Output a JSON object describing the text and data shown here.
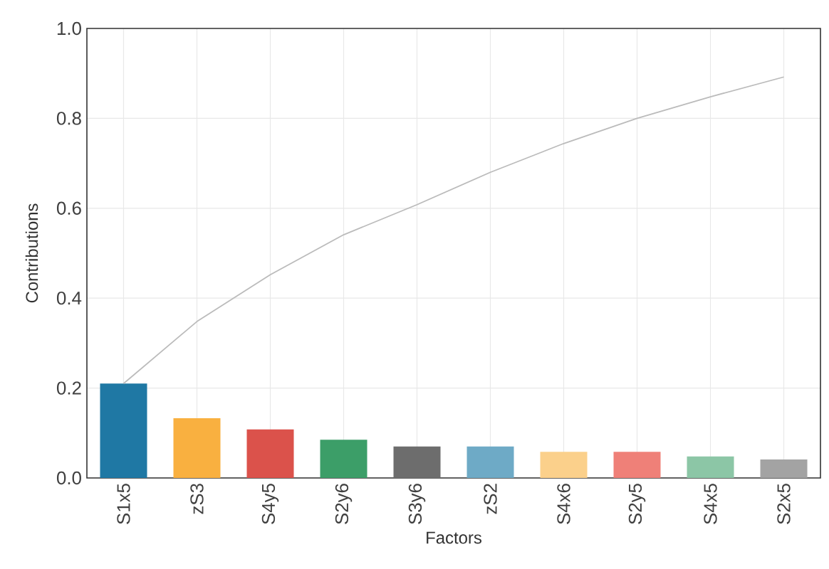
{
  "chart_data": {
    "type": "bar",
    "xlabel": "Factors",
    "ylabel": "Contributions",
    "categories": [
      "S1x5",
      "zS3",
      "S4y5",
      "S2y6",
      "S3y6",
      "zS2",
      "S4x6",
      "S2y5",
      "S4x5",
      "S2x5"
    ],
    "series": [
      {
        "colors": [
          "#1f78a4",
          "#f9b040",
          "#db524b",
          "#3c9e68",
          "#6d6d6d",
          "#6eaac6",
          "#fbd08b",
          "#ef8078",
          "#8cc6a6",
          "#a3a3a3"
        ],
        "values": [
          0.21,
          0.133,
          0.108,
          0.085,
          0.07,
          0.07,
          0.058,
          0.058,
          0.048,
          0.041
        ]
      },
      {
        "type": "line",
        "color": "#bbbbbb",
        "values": [
          0.21,
          0.348,
          0.452,
          0.541,
          0.608,
          0.68,
          0.744,
          0.8,
          0.848,
          0.892
        ]
      }
    ],
    "ylim": [
      0,
      1
    ],
    "yticks": [
      {
        "value": 0,
        "label": "0.0"
      },
      {
        "value": 0.2,
        "label": "0.2"
      },
      {
        "value": 0.4,
        "label": "0.4"
      },
      {
        "value": 0.6,
        "label": "0.6"
      },
      {
        "value": 0.8,
        "label": "0.8"
      },
      {
        "value": 1,
        "label": "1.0"
      }
    ],
    "grid": true
  }
}
